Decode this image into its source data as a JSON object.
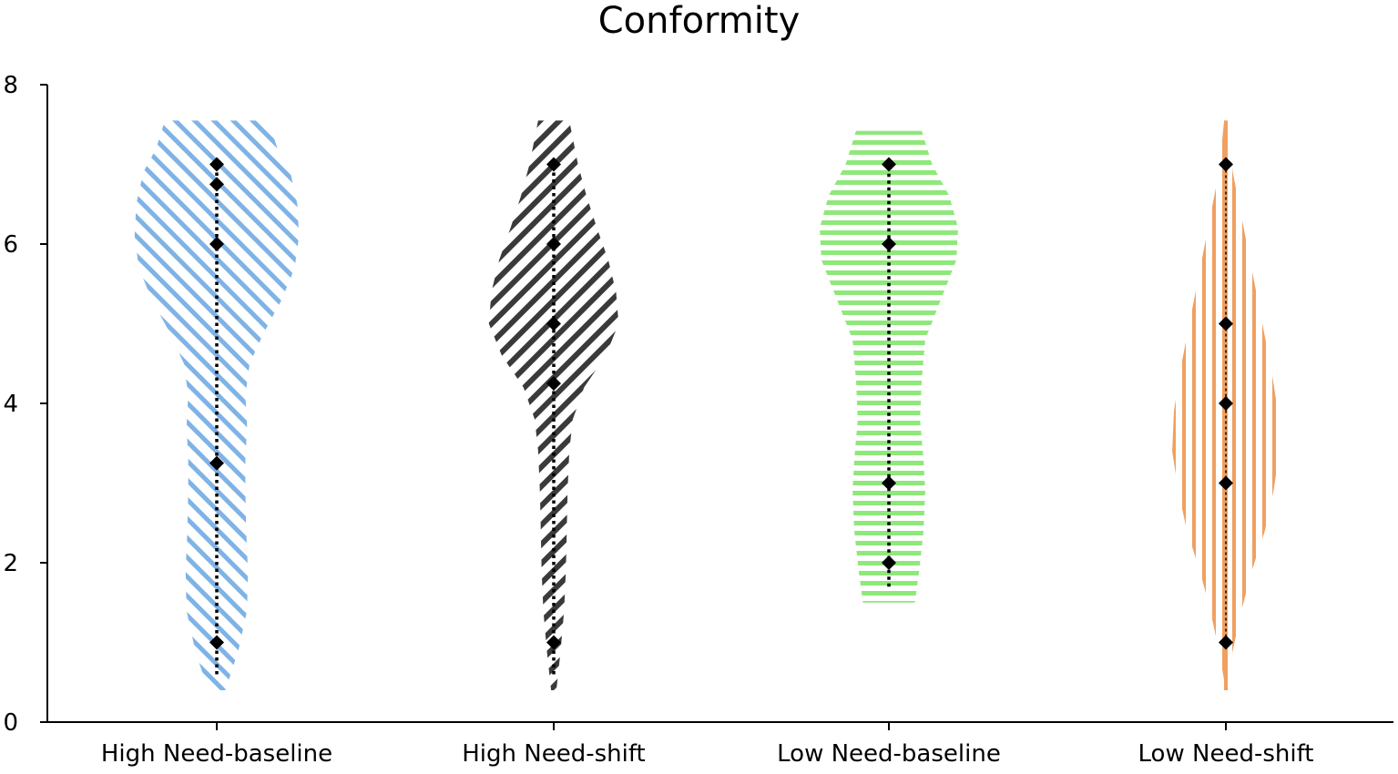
{
  "chart_data": {
    "type": "violin",
    "title": "Conformity",
    "xlabel": "",
    "ylabel": "",
    "ylim": [
      0,
      8
    ],
    "yticks": [
      0,
      2,
      4,
      6,
      8
    ],
    "grid": false,
    "categories": [
      "High Need-baseline",
      "High Need-shift",
      "Low Need-baseline",
      "Low Need-shift"
    ],
    "series": [
      {
        "category": "High Need-baseline",
        "color": "#7fb3e6",
        "pattern": "diagonal-down",
        "points": [
          7,
          6.75,
          6,
          3.25,
          1
        ],
        "range": [
          0.4,
          7.55
        ],
        "density": [
          [
            0.4,
            0.1
          ],
          [
            0.9,
            0.25
          ],
          [
            1.4,
            0.35
          ],
          [
            1.9,
            0.36
          ],
          [
            2.4,
            0.34
          ],
          [
            2.9,
            0.33
          ],
          [
            3.3,
            0.33
          ],
          [
            3.7,
            0.35
          ],
          [
            4.1,
            0.33
          ],
          [
            4.5,
            0.38
          ],
          [
            4.9,
            0.55
          ],
          [
            5.3,
            0.75
          ],
          [
            5.7,
            0.9
          ],
          [
            6.1,
            0.95
          ],
          [
            6.5,
            0.93
          ],
          [
            6.9,
            0.85
          ],
          [
            7.2,
            0.7
          ],
          [
            7.55,
            0.6
          ]
        ]
      },
      {
        "category": "High Need-shift",
        "color": "#3a3a3a",
        "pattern": "diagonal-up",
        "points": [
          7,
          6,
          5,
          4.25,
          1
        ],
        "range": [
          0.4,
          7.55
        ],
        "density": [
          [
            0.4,
            0.03
          ],
          [
            0.9,
            0.08
          ],
          [
            1.4,
            0.12
          ],
          [
            1.9,
            0.14
          ],
          [
            2.4,
            0.15
          ],
          [
            2.9,
            0.16
          ],
          [
            3.4,
            0.18
          ],
          [
            3.8,
            0.22
          ],
          [
            4.2,
            0.35
          ],
          [
            4.6,
            0.6
          ],
          [
            5,
            0.75
          ],
          [
            5.4,
            0.72
          ],
          [
            5.8,
            0.63
          ],
          [
            6.2,
            0.5
          ],
          [
            6.6,
            0.38
          ],
          [
            7,
            0.28
          ],
          [
            7.55,
            0.18
          ]
        ]
      },
      {
        "category": "Low Need-baseline",
        "color": "#8ee87a",
        "pattern": "horizontal",
        "points": [
          7,
          6,
          3,
          2
        ],
        "range": [
          1.5,
          7.42
        ],
        "density": [
          [
            1.5,
            0.3
          ],
          [
            1.9,
            0.35
          ],
          [
            2.4,
            0.4
          ],
          [
            2.9,
            0.42
          ],
          [
            3.3,
            0.4
          ],
          [
            3.8,
            0.36
          ],
          [
            4.3,
            0.38
          ],
          [
            4.8,
            0.42
          ],
          [
            5.3,
            0.6
          ],
          [
            5.8,
            0.78
          ],
          [
            6.2,
            0.8
          ],
          [
            6.6,
            0.7
          ],
          [
            7,
            0.5
          ],
          [
            7.42,
            0.38
          ]
        ]
      },
      {
        "category": "Low Need-shift",
        "color": "#f0a060",
        "pattern": "vertical",
        "points": [
          7,
          5,
          4,
          3,
          1
        ],
        "range": [
          0.4,
          7.55
        ],
        "density": [
          [
            0.4,
            0.0
          ],
          [
            0.9,
            0.08
          ],
          [
            1.4,
            0.18
          ],
          [
            1.9,
            0.3
          ],
          [
            2.4,
            0.45
          ],
          [
            2.9,
            0.55
          ],
          [
            3.4,
            0.62
          ],
          [
            3.9,
            0.6
          ],
          [
            4.4,
            0.53
          ],
          [
            4.9,
            0.44
          ],
          [
            5.4,
            0.35
          ],
          [
            5.9,
            0.26
          ],
          [
            6.4,
            0.17
          ],
          [
            6.9,
            0.08
          ],
          [
            7.55,
            0.02
          ]
        ]
      }
    ]
  }
}
